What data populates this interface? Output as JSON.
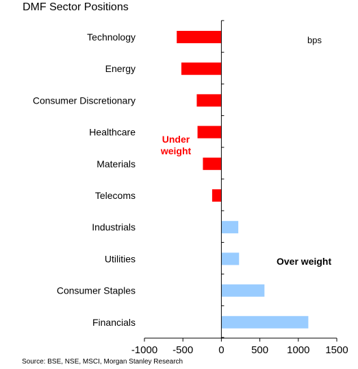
{
  "chart_data": {
    "type": "bar",
    "orientation": "horizontal",
    "title": "DMF Sector Positions",
    "unit_label": "bps",
    "source": "Source: BSE, NSE, MSCI, Morgan Stanley Research",
    "categories": [
      "Technology",
      "Energy",
      "Consumer Discretionary",
      "Healthcare",
      "Materials",
      "Telecoms",
      "Industrials",
      "Utilities",
      "Consumer Staples",
      "Financials"
    ],
    "values": [
      -580,
      -520,
      -320,
      -310,
      -240,
      -120,
      220,
      230,
      560,
      1130
    ],
    "xlim": [
      -1000,
      1500
    ],
    "xticks": [
      -1000,
      -500,
      0,
      500,
      1000,
      1500
    ],
    "xtick_labels": [
      "-1000",
      "-500",
      "0",
      "500",
      "1000",
      "1500"
    ],
    "annotations": {
      "under_line1": "Under",
      "under_line2": "weight",
      "over": "Over weight"
    },
    "colors": {
      "negative": "#ff0000",
      "positive": "#99ccff"
    },
    "grid": false
  }
}
